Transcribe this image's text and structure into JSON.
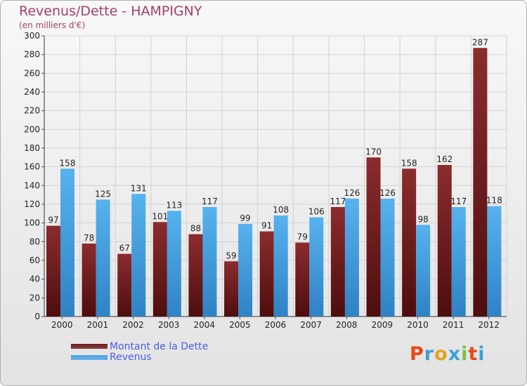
{
  "title": "Revenus/Dette - HAMPIGNY",
  "subtitle": "(en milliers d'€)",
  "legend": [
    {
      "label": "Montant de la Dette",
      "color": "#6b1a1c"
    },
    {
      "label": "Revenus",
      "color": "#4aa3e6"
    }
  ],
  "logo": {
    "text": "Proxiti",
    "colors": [
      "#e64a19",
      "#3aa0d8",
      "#e6a020",
      "#3aa0d8",
      "#7ac142",
      "#e64a19",
      "#3aa0d8"
    ]
  },
  "chart_data": {
    "type": "bar",
    "categories": [
      "2000",
      "2001",
      "2002",
      "2003",
      "2004",
      "2005",
      "2006",
      "2007",
      "2008",
      "2009",
      "2010",
      "2011",
      "2012"
    ],
    "series": [
      {
        "name": "Montant de la Dette",
        "color": "#6b1a1c",
        "values": [
          97,
          78,
          67,
          101,
          88,
          59,
          91,
          79,
          117,
          170,
          158,
          162,
          287
        ]
      },
      {
        "name": "Revenus",
        "color": "#4aa3e6",
        "values": [
          158,
          125,
          131,
          113,
          117,
          99,
          108,
          106,
          126,
          126,
          98,
          117,
          118
        ]
      }
    ],
    "ylim": [
      0,
      300
    ],
    "ytick_step": 20,
    "grid": true,
    "legend_position": "bottom-left"
  }
}
